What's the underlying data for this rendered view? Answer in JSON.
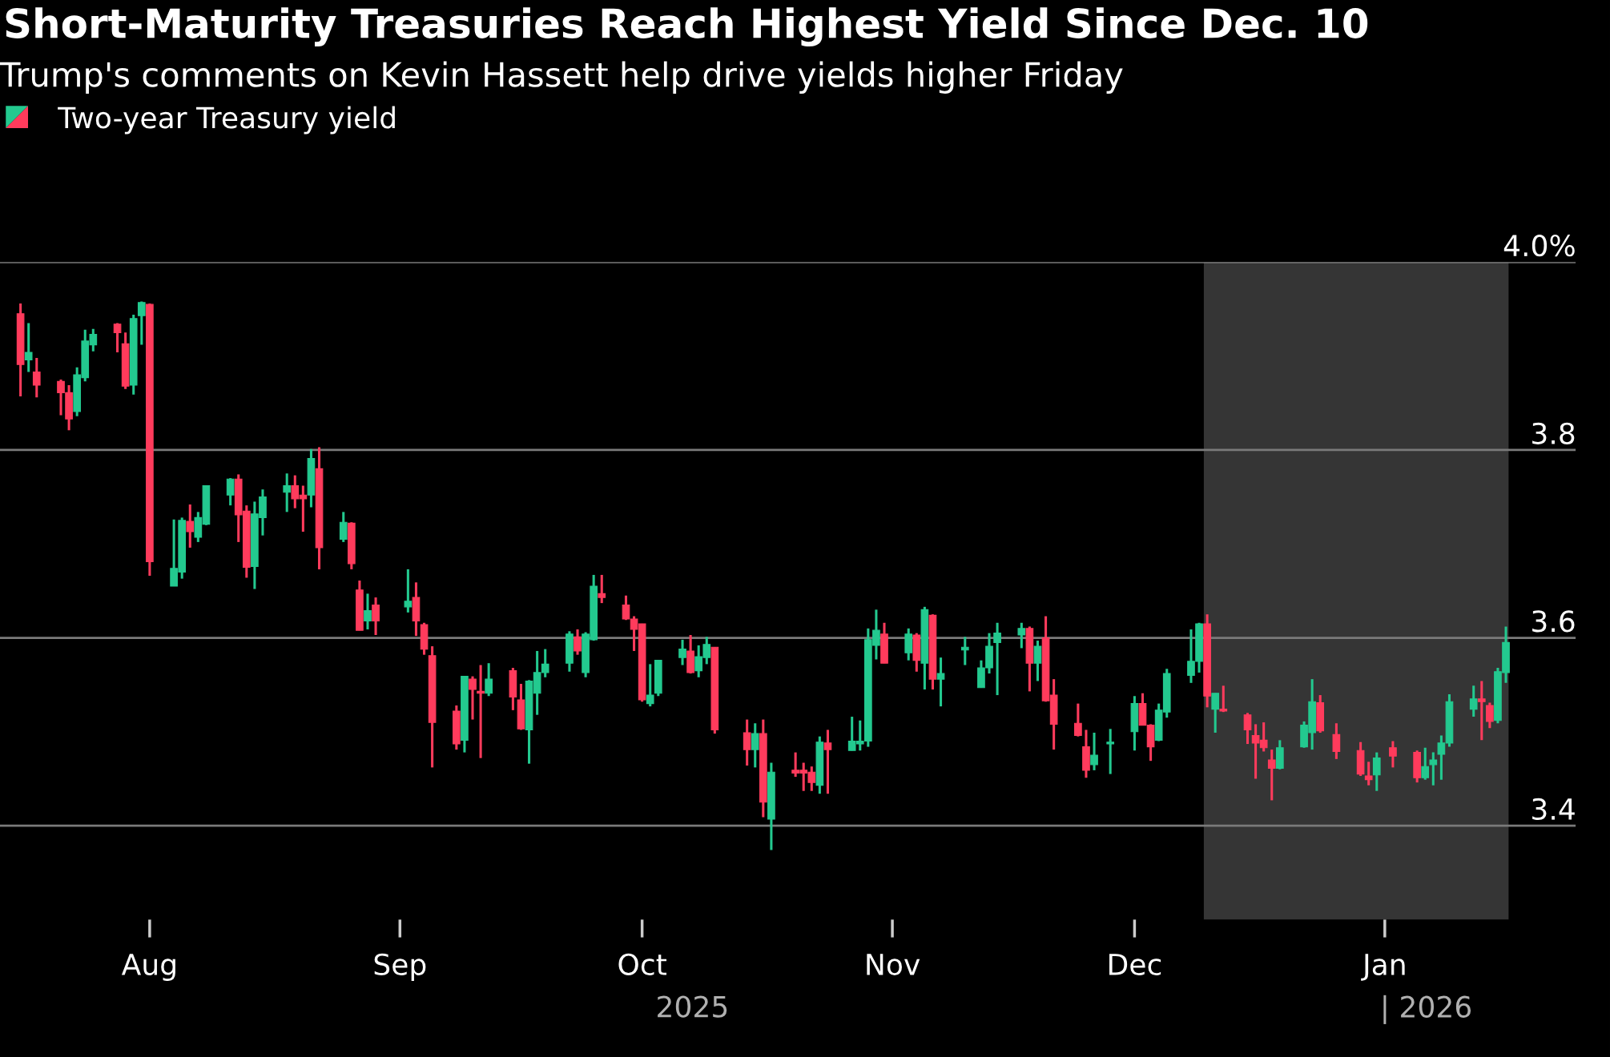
{
  "chart_data": {
    "type": "candlestick",
    "title": "Short-Maturity Treasuries Reach Highest Yield Since Dec. 10",
    "subtitle": "Trump's comments on Kevin Hassett help drive yields higher Friday",
    "annotations": [
      "2025",
      "| 2026"
    ],
    "x": [
      "2025-07-16",
      "2025-07-17",
      "2025-07-18",
      "2025-07-21",
      "2025-07-22",
      "2025-07-23",
      "2025-07-24",
      "2025-07-25",
      "2025-07-28",
      "2025-07-29",
      "2025-07-30",
      "2025-07-31",
      "2025-08-01",
      "2025-08-04",
      "2025-08-05",
      "2025-08-06",
      "2025-08-07",
      "2025-08-08",
      "2025-08-11",
      "2025-08-12",
      "2025-08-13",
      "2025-08-14",
      "2025-08-15",
      "2025-08-18",
      "2025-08-19",
      "2025-08-20",
      "2025-08-21",
      "2025-08-22",
      "2025-08-25",
      "2025-08-26",
      "2025-08-27",
      "2025-08-28",
      "2025-08-29",
      "2025-09-02",
      "2025-09-03",
      "2025-09-04",
      "2025-09-05",
      "2025-09-08",
      "2025-09-09",
      "2025-09-10",
      "2025-09-11",
      "2025-09-12",
      "2025-09-15",
      "2025-09-16",
      "2025-09-17",
      "2025-09-18",
      "2025-09-19",
      "2025-09-22",
      "2025-09-23",
      "2025-09-24",
      "2025-09-25",
      "2025-09-26",
      "2025-09-29",
      "2025-09-30",
      "2025-10-01",
      "2025-10-02",
      "2025-10-03",
      "2025-10-06",
      "2025-10-07",
      "2025-10-08",
      "2025-10-09",
      "2025-10-10",
      "2025-10-14",
      "2025-10-15",
      "2025-10-16",
      "2025-10-17",
      "2025-10-20",
      "2025-10-21",
      "2025-10-22",
      "2025-10-23",
      "2025-10-24",
      "2025-10-27",
      "2025-10-28",
      "2025-10-29",
      "2025-10-30",
      "2025-10-31",
      "2025-11-03",
      "2025-11-04",
      "2025-11-05",
      "2025-11-06",
      "2025-11-07",
      "2025-11-10",
      "2025-11-12",
      "2025-11-13",
      "2025-11-14",
      "2025-11-17",
      "2025-11-18",
      "2025-11-19",
      "2025-11-20",
      "2025-11-21",
      "2025-11-24",
      "2025-11-25",
      "2025-11-26",
      "2025-11-28",
      "2025-12-01",
      "2025-12-02",
      "2025-12-03",
      "2025-12-04",
      "2025-12-05",
      "2025-12-08",
      "2025-12-09",
      "2025-12-10",
      "2025-12-11",
      "2025-12-12",
      "2025-12-15",
      "2025-12-16",
      "2025-12-17",
      "2025-12-18",
      "2025-12-19",
      "2025-12-22",
      "2025-12-23",
      "2025-12-24",
      "2025-12-26",
      "2025-12-29",
      "2025-12-30",
      "2025-12-31",
      "2026-01-02",
      "2026-01-05",
      "2026-01-06",
      "2026-01-07",
      "2026-01-08",
      "2026-01-09",
      "2026-01-12",
      "2026-01-13",
      "2026-01-14",
      "2026-01-15",
      "2026-01-16"
    ],
    "series": [
      {
        "name": "Two-year Treasury yield",
        "ohlc": [
          [
            3.945,
            3.956,
            3.857,
            3.891
          ],
          [
            3.896,
            3.935,
            3.883,
            3.904
          ],
          [
            3.883,
            3.898,
            3.856,
            3.869
          ],
          [
            3.873,
            3.875,
            3.837,
            3.861
          ],
          [
            3.861,
            3.869,
            3.821,
            3.833
          ],
          [
            3.841,
            3.888,
            3.836,
            3.88
          ],
          [
            3.877,
            3.928,
            3.873,
            3.916
          ],
          [
            3.912,
            3.929,
            3.905,
            3.923
          ],
          [
            3.934,
            3.935,
            3.904,
            3.925
          ],
          [
            3.913,
            3.925,
            3.865,
            3.868
          ],
          [
            3.869,
            3.944,
            3.859,
            3.94
          ],
          [
            3.943,
            3.958,
            3.912,
            3.957
          ],
          [
            3.955,
            3.956,
            3.666,
            3.681
          ],
          [
            3.655,
            3.726,
            3.655,
            3.674
          ],
          [
            3.67,
            3.728,
            3.663,
            3.725
          ],
          [
            3.724,
            3.742,
            3.696,
            3.713
          ],
          [
            3.707,
            3.734,
            3.702,
            3.728
          ],
          [
            3.721,
            3.762,
            3.72,
            3.762
          ],
          [
            3.752,
            3.77,
            3.741,
            3.769
          ],
          [
            3.769,
            3.774,
            3.702,
            3.731
          ],
          [
            3.735,
            3.741,
            3.664,
            3.675
          ],
          [
            3.676,
            3.745,
            3.652,
            3.732
          ],
          [
            3.728,
            3.758,
            3.709,
            3.75
          ],
          [
            3.755,
            3.775,
            3.734,
            3.762
          ],
          [
            3.762,
            3.773,
            3.738,
            3.748
          ],
          [
            3.752,
            3.762,
            3.713,
            3.748
          ],
          [
            3.752,
            3.801,
            3.739,
            3.791
          ],
          [
            3.78,
            3.803,
            3.673,
            3.696
          ],
          [
            3.705,
            3.734,
            3.702,
            3.723
          ],
          [
            3.722,
            3.723,
            3.673,
            3.679
          ],
          [
            3.651,
            3.661,
            3.608,
            3.608
          ],
          [
            3.618,
            3.647,
            3.609,
            3.629
          ],
          [
            3.635,
            3.643,
            3.603,
            3.618
          ],
          [
            3.633,
            3.673,
            3.627,
            3.639
          ],
          [
            3.643,
            3.659,
            3.602,
            3.618
          ],
          [
            3.614,
            3.616,
            3.582,
            3.588
          ],
          [
            3.581,
            3.591,
            3.462,
            3.51
          ],
          [
            3.522,
            3.528,
            3.481,
            3.487
          ],
          [
            3.491,
            3.559,
            3.478,
            3.559
          ],
          [
            3.556,
            3.559,
            3.513,
            3.545
          ],
          [
            3.543,
            3.571,
            3.472,
            3.541
          ],
          [
            3.541,
            3.573,
            3.538,
            3.556
          ],
          [
            3.565,
            3.568,
            3.523,
            3.537
          ],
          [
            3.534,
            3.551,
            3.502,
            3.503
          ],
          [
            3.502,
            3.555,
            3.466,
            3.554
          ],
          [
            3.541,
            3.586,
            3.518,
            3.563
          ],
          [
            3.563,
            3.588,
            3.558,
            3.572
          ],
          [
            3.573,
            3.607,
            3.564,
            3.604
          ],
          [
            3.601,
            3.609,
            3.582,
            3.586
          ],
          [
            3.563,
            3.606,
            3.558,
            3.604
          ],
          [
            3.598,
            3.667,
            3.597,
            3.655
          ],
          [
            3.647,
            3.667,
            3.637,
            3.643
          ],
          [
            3.635,
            3.645,
            3.619,
            3.62
          ],
          [
            3.62,
            3.623,
            3.586,
            3.609
          ],
          [
            3.615,
            3.615,
            3.532,
            3.534
          ],
          [
            3.53,
            3.572,
            3.527,
            3.539
          ],
          [
            3.541,
            3.576,
            3.538,
            3.576
          ],
          [
            3.579,
            3.598,
            3.571,
            3.588
          ],
          [
            3.586,
            3.603,
            3.562,
            3.563
          ],
          [
            3.565,
            3.592,
            3.558,
            3.58
          ],
          [
            3.579,
            3.601,
            3.572,
            3.593
          ],
          [
            3.59,
            3.59,
            3.498,
            3.502
          ],
          [
            3.499,
            3.513,
            3.464,
            3.481
          ],
          [
            3.481,
            3.509,
            3.462,
            3.498
          ],
          [
            3.498,
            3.513,
            3.409,
            3.425
          ],
          [
            3.407,
            3.467,
            3.374,
            3.457
          ],
          [
            3.459,
            3.478,
            3.452,
            3.456
          ],
          [
            3.459,
            3.467,
            3.437,
            3.456
          ],
          [
            3.457,
            3.463,
            3.437,
            3.446
          ],
          [
            3.443,
            3.495,
            3.434,
            3.489
          ],
          [
            3.488,
            3.502,
            3.434,
            3.481
          ],
          [
            3.48,
            3.516,
            3.48,
            3.49
          ],
          [
            3.487,
            3.512,
            3.48,
            3.49
          ],
          [
            3.49,
            3.61,
            3.484,
            3.598
          ],
          [
            3.592,
            3.63,
            3.577,
            3.608
          ],
          [
            3.604,
            3.616,
            3.573,
            3.573
          ],
          [
            3.584,
            3.61,
            3.576,
            3.604
          ],
          [
            3.603,
            3.605,
            3.564,
            3.576
          ],
          [
            3.573,
            3.633,
            3.545,
            3.63
          ],
          [
            3.624,
            3.625,
            3.545,
            3.556
          ],
          [
            3.556,
            3.579,
            3.527,
            3.562
          ],
          [
            3.587,
            3.601,
            3.571,
            3.59
          ],
          [
            3.547,
            3.576,
            3.547,
            3.568
          ],
          [
            3.568,
            3.605,
            3.562,
            3.591
          ],
          [
            3.595,
            3.616,
            3.539,
            3.605
          ],
          [
            3.603,
            3.616,
            3.589,
            3.61
          ],
          [
            3.61,
            3.612,
            3.543,
            3.573
          ],
          [
            3.573,
            3.597,
            3.554,
            3.591
          ],
          [
            3.6,
            3.623,
            3.532,
            3.533
          ],
          [
            3.539,
            3.556,
            3.481,
            3.508
          ],
          [
            3.509,
            3.53,
            3.495,
            3.496
          ],
          [
            3.484,
            3.502,
            3.451,
            3.459
          ],
          [
            3.465,
            3.499,
            3.459,
            3.475
          ],
          [
            3.487,
            3.503,
            3.455,
            3.489
          ],
          [
            3.5,
            3.538,
            3.48,
            3.53
          ],
          [
            3.53,
            3.541,
            3.507,
            3.507
          ],
          [
            3.507,
            3.508,
            3.469,
            3.484
          ],
          [
            3.491,
            3.53,
            3.49,
            3.523
          ],
          [
            3.521,
            3.567,
            3.515,
            3.562
          ],
          [
            3.56,
            3.609,
            3.552,
            3.575
          ],
          [
            3.575,
            3.616,
            3.563,
            3.615
          ],
          [
            3.615,
            3.625,
            3.526,
            3.538
          ],
          [
            3.524,
            3.541,
            3.499,
            3.541
          ],
          [
            3.524,
            3.549,
            3.521,
            3.522
          ],
          [
            3.518,
            3.52,
            3.487,
            3.502
          ],
          [
            3.496,
            3.508,
            3.45,
            3.488
          ],
          [
            3.491,
            3.51,
            3.479,
            3.483
          ],
          [
            3.47,
            3.481,
            3.427,
            3.461
          ],
          [
            3.461,
            3.491,
            3.46,
            3.483
          ],
          [
            3.484,
            3.511,
            3.483,
            3.507
          ],
          [
            3.499,
            3.556,
            3.481,
            3.532
          ],
          [
            3.531,
            3.539,
            3.499,
            3.501
          ],
          [
            3.497,
            3.509,
            3.471,
            3.479
          ],
          [
            3.48,
            3.489,
            3.453,
            3.455
          ],
          [
            3.453,
            3.468,
            3.443,
            3.449
          ],
          [
            3.454,
            3.478,
            3.437,
            3.472
          ],
          [
            3.483,
            3.49,
            3.462,
            3.474
          ],
          [
            3.478,
            3.48,
            3.446,
            3.451
          ],
          [
            3.451,
            3.483,
            3.449,
            3.463
          ],
          [
            3.465,
            3.478,
            3.443,
            3.47
          ],
          [
            3.476,
            3.496,
            3.449,
            3.488
          ],
          [
            3.488,
            3.54,
            3.484,
            3.532
          ],
          [
            3.524,
            3.549,
            3.516,
            3.535
          ],
          [
            3.535,
            3.554,
            3.491,
            3.532
          ],
          [
            3.528,
            3.531,
            3.504,
            3.511
          ],
          [
            3.512,
            3.568,
            3.509,
            3.564
          ],
          [
            3.563,
            3.612,
            3.552,
            3.595
          ]
        ],
        "colors": [
          "#ff3b5c",
          "#23c98f",
          "#ff3b5c",
          "#ff3b5c",
          "#ff3b5c",
          "#23c98f",
          "#23c98f",
          "#23c98f",
          "#ff3b5c",
          "#ff3b5c",
          "#23c98f",
          "#23c98f",
          "#ff3b5c",
          "#23c98f",
          "#23c98f",
          "#ff3b5c",
          "#23c98f",
          "#23c98f",
          "#23c98f",
          "#ff3b5c",
          "#ff3b5c",
          "#23c98f",
          "#23c98f",
          "#23c98f",
          "#ff3b5c",
          "#ff3b5c",
          "#23c98f",
          "#ff3b5c",
          "#23c98f",
          "#ff3b5c",
          "#ff3b5c",
          "#23c98f",
          "#ff3b5c",
          "#23c98f",
          "#ff3b5c",
          "#ff3b5c",
          "#ff3b5c",
          "#ff3b5c",
          "#23c98f",
          "#ff3b5c",
          "#ff3b5c",
          "#23c98f",
          "#ff3b5c",
          "#ff3b5c",
          "#23c98f",
          "#23c98f",
          "#23c98f",
          "#23c98f",
          "#ff3b5c",
          "#23c98f",
          "#23c98f",
          "#ff3b5c",
          "#ff3b5c",
          "#ff3b5c",
          "#ff3b5c",
          "#23c98f",
          "#23c98f",
          "#23c98f",
          "#ff3b5c",
          "#23c98f",
          "#23c98f",
          "#ff3b5c",
          "#ff3b5c",
          "#23c98f",
          "#ff3b5c",
          "#23c98f",
          "#ff3b5c",
          "#ff3b5c",
          "#ff3b5c",
          "#23c98f",
          "#ff3b5c",
          "#23c98f",
          "#23c98f",
          "#23c98f",
          "#23c98f",
          "#ff3b5c",
          "#23c98f",
          "#ff3b5c",
          "#23c98f",
          "#ff3b5c",
          "#23c98f",
          "#23c98f",
          "#23c98f",
          "#23c98f",
          "#23c98f",
          "#23c98f",
          "#ff3b5c",
          "#23c98f",
          "#ff3b5c",
          "#ff3b5c",
          "#ff3b5c",
          "#ff3b5c",
          "#23c98f",
          "#23c98f",
          "#23c98f",
          "#ff3b5c",
          "#ff3b5c",
          "#23c98f",
          "#23c98f",
          "#23c98f",
          "#23c98f",
          "#ff3b5c",
          "#23c98f",
          "#ff3b5c",
          "#ff3b5c",
          "#ff3b5c",
          "#ff3b5c",
          "#ff3b5c",
          "#23c98f",
          "#23c98f",
          "#23c98f",
          "#ff3b5c",
          "#ff3b5c",
          "#ff3b5c",
          "#ff3b5c",
          "#23c98f",
          "#ff3b5c",
          "#ff3b5c",
          "#23c98f",
          "#23c98f",
          "#23c98f",
          "#23c98f",
          "#23c98f",
          "#ff3b5c",
          "#ff3b5c",
          "#23c98f",
          "#23c98f"
        ]
      }
    ],
    "xlim": [
      "2025-07-13T11:00",
      "2026-01-24T17:00"
    ],
    "xticks": [
      {
        "value": "2025-08-01",
        "label": "Aug"
      },
      {
        "value": "2025-09-01",
        "label": "Sep"
      },
      {
        "value": "2025-10-01",
        "label": "Oct"
      },
      {
        "value": "2025-11-01",
        "label": "Nov"
      },
      {
        "value": "2025-12-01",
        "label": "Dec"
      },
      {
        "value": "2026-01-01",
        "label": "Jan"
      }
    ],
    "ylim": [
      3.3,
      4.0
    ],
    "yticks": [
      3.4,
      3.6,
      3.8,
      {
        "value": 4.0,
        "label": "4.0%"
      }
    ],
    "bands": [
      {
        "axis": "x",
        "from": "2025-12-09T14:00",
        "to": "2026-01-16T08:00",
        "color": "#353535"
      }
    ],
    "grid": "y",
    "legend": "top left"
  }
}
